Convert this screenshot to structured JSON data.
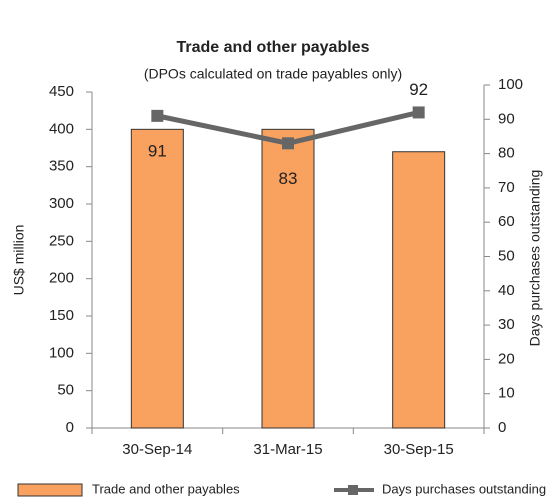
{
  "chart_data": {
    "type": "bar-line",
    "title": "Trade and other payables",
    "subtitle": "(DPOs calculated on trade payables only)",
    "y_label": "US$ million",
    "y2_label": "Days purchases outstanding",
    "categories": [
      "30-Sep-14",
      "31-Mar-15",
      "30-Sep-15"
    ],
    "series": [
      {
        "name": "Trade and other payables",
        "type": "bar",
        "color": "#f9a15e",
        "values": [
          400,
          400,
          370
        ]
      },
      {
        "name": "Days purchases outstanding",
        "type": "line",
        "color": "#666666",
        "axis": "y2",
        "values": [
          91,
          83,
          92
        ]
      }
    ],
    "ylim": [
      0,
      450
    ],
    "yticks": [
      0,
      50,
      100,
      150,
      200,
      250,
      300,
      350,
      400,
      450
    ],
    "y2lim": [
      0,
      100
    ],
    "y2ticks": [
      0,
      10,
      20,
      30,
      40,
      50,
      60,
      70,
      80,
      90,
      100
    ],
    "legend": "bottom"
  }
}
